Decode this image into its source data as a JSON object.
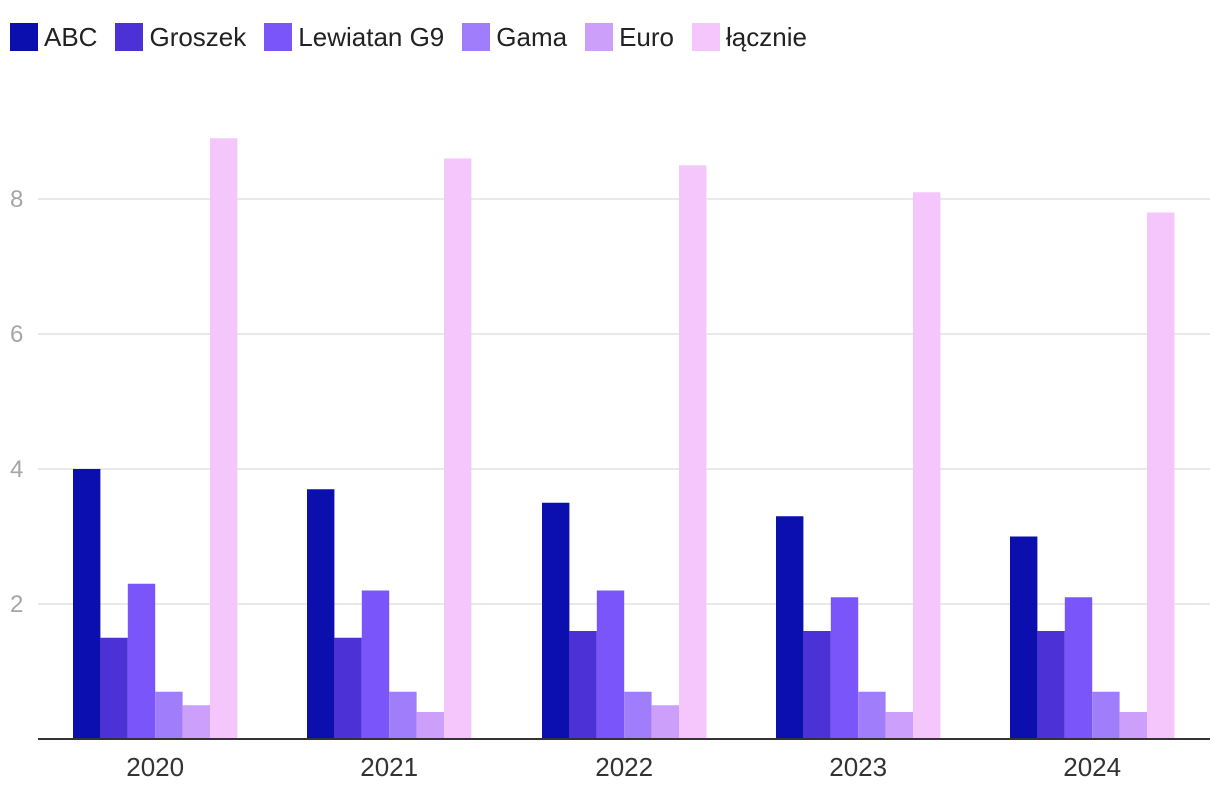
{
  "chart_data": {
    "type": "bar",
    "title": "",
    "xlabel": "",
    "ylabel": "",
    "categories": [
      "2020",
      "2021",
      "2022",
      "2023",
      "2024"
    ],
    "series": [
      {
        "name": "ABC",
        "color": "#0a0fae",
        "values": [
          4.0,
          3.7,
          3.5,
          3.3,
          3.0
        ]
      },
      {
        "name": "Groszek",
        "color": "#4c32d6",
        "values": [
          1.5,
          1.5,
          1.6,
          1.6,
          1.6
        ]
      },
      {
        "name": "Lewiatan G9",
        "color": "#7a55fa",
        "values": [
          2.3,
          2.2,
          2.2,
          2.1,
          2.1
        ]
      },
      {
        "name": "Gama",
        "color": "#a07efb",
        "values": [
          0.7,
          0.7,
          0.7,
          0.7,
          0.7
        ]
      },
      {
        "name": "Euro",
        "color": "#cc9ffa",
        "values": [
          0.5,
          0.4,
          0.5,
          0.4,
          0.4
        ]
      },
      {
        "name": "łącznie",
        "color": "#f4c6fc",
        "values": [
          8.9,
          8.6,
          8.5,
          8.1,
          7.8
        ]
      }
    ],
    "yticks": [
      "2",
      "4",
      "6",
      "8"
    ],
    "ylim": [
      0,
      9.2
    ],
    "grid": true,
    "legend_position": "top-left"
  }
}
